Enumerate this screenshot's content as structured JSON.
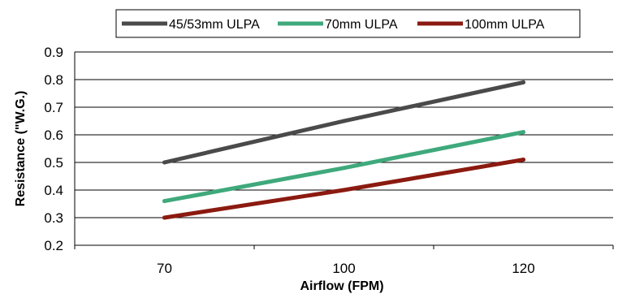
{
  "chart_data": {
    "type": "line",
    "x": [
      "70",
      "100",
      "120"
    ],
    "series": [
      {
        "name": "45/53mm ULPA",
        "color": "#4a4a4a",
        "values": [
          0.5,
          0.65,
          0.79
        ]
      },
      {
        "name": "70mm ULPA",
        "color": "#3fa97c",
        "values": [
          0.36,
          0.48,
          0.61
        ]
      },
      {
        "name": "100mm ULPA",
        "color": "#8b1a10",
        "values": [
          0.3,
          0.4,
          0.51
        ]
      }
    ],
    "xlabel": "Airflow (FPM)",
    "ylabel": "Resistance (\"W.G.)",
    "ylim": [
      0.2,
      0.9
    ],
    "yticks": [
      "0.2",
      "0.3",
      "0.4",
      "0.5",
      "0.6",
      "0.7",
      "0.8",
      "0.9"
    ],
    "grid": "horizontal",
    "legend_position": "top"
  }
}
